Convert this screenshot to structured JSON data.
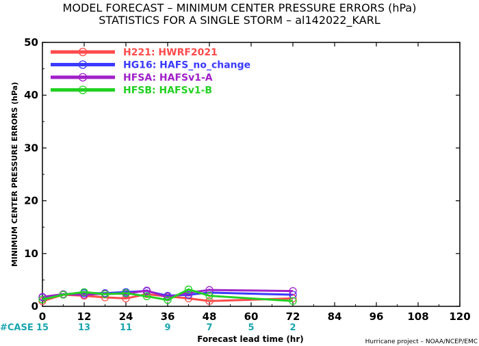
{
  "header": {
    "title_line1": "MODEL FORECAST – MINIMUM CENTER PRESSURE ERRORS (hPa)",
    "title_line2": "STATISTICS FOR A SINGLE STORM – al142022_KARL"
  },
  "footer": {
    "credit": "Hurricane project – NOAA/NCEP/EMC",
    "case_label": "#CASE"
  },
  "chart_data": {
    "type": "line",
    "title": "MODEL FORECAST – MINIMUM CENTER PRESSURE ERRORS (hPa) STATISTICS FOR A SINGLE STORM – al142022_KARL",
    "xlabel": "Forecast lead time (hr)",
    "ylabel": "MINIMUM CENTER PRESSURE ERRORS (hPa)",
    "xlim": [
      0,
      120
    ],
    "ylim": [
      0,
      50
    ],
    "xticks": [
      0,
      12,
      24,
      36,
      48,
      60,
      72,
      84,
      96,
      108,
      120
    ],
    "yticks": [
      0,
      10,
      20,
      30,
      40,
      50
    ],
    "grid": false,
    "legend_position": "top-left",
    "cases": {
      "x": [
        0,
        12,
        24,
        36,
        48,
        60,
        72
      ],
      "counts": [
        "15",
        "13",
        "11",
        "9",
        "7",
        "5",
        "2"
      ]
    },
    "series": [
      {
        "name": "H221: HWRF2021",
        "color": "#ff4a4a",
        "x": [
          0,
          6,
          12,
          18,
          24,
          30,
          36,
          42,
          48,
          72
        ],
        "values": [
          1.0,
          2.2,
          2.0,
          1.7,
          1.5,
          2.3,
          1.9,
          1.5,
          1.0,
          1.5
        ]
      },
      {
        "name": "HG16: HAFS_no_change",
        "color": "#3a3aff",
        "x": [
          0,
          6,
          12,
          18,
          24,
          30,
          36,
          42,
          48,
          72
        ],
        "values": [
          1.7,
          2.3,
          2.5,
          2.5,
          2.7,
          2.9,
          2.0,
          2.2,
          2.6,
          2.2
        ]
      },
      {
        "name": "HFSA: HAFSv1-A",
        "color": "#a020c8",
        "x": [
          0,
          6,
          12,
          18,
          24,
          30,
          36,
          42,
          48,
          72
        ],
        "values": [
          1.8,
          2.3,
          2.2,
          2.4,
          2.4,
          3.0,
          1.7,
          2.6,
          3.1,
          2.9
        ]
      },
      {
        "name": "HFSB: HAFSv1-B",
        "color": "#22d022",
        "x": [
          0,
          6,
          12,
          18,
          24,
          30,
          36,
          42,
          48,
          72
        ],
        "values": [
          1.3,
          2.2,
          2.7,
          2.3,
          2.5,
          1.9,
          1.2,
          3.2,
          2.0,
          1.0
        ]
      }
    ]
  }
}
